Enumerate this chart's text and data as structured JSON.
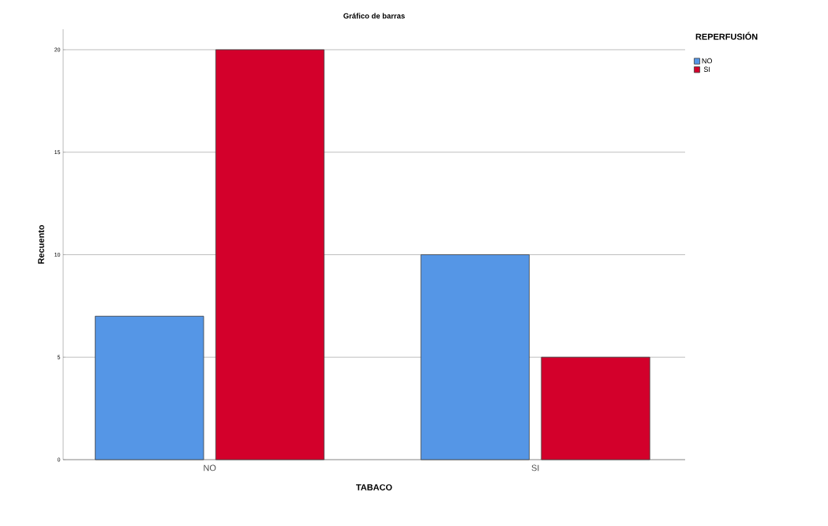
{
  "chart_data": {
    "type": "bar",
    "title": "Gráfico de barras",
    "xlabel": "TABACO",
    "ylabel": "Recuento",
    "legend_title": "REPERFUSIÓN",
    "categories": [
      "NO",
      "SI"
    ],
    "series": [
      {
        "name": "NO",
        "color": "#5596e6",
        "values": [
          7,
          10
        ]
      },
      {
        "name": "SI",
        "color": "#d3002b",
        "values": [
          20,
          5
        ]
      }
    ],
    "ylim": [
      0,
      21
    ],
    "yticks": [
      0,
      5,
      10,
      15,
      20
    ],
    "grid": "y",
    "legend": "top right"
  }
}
